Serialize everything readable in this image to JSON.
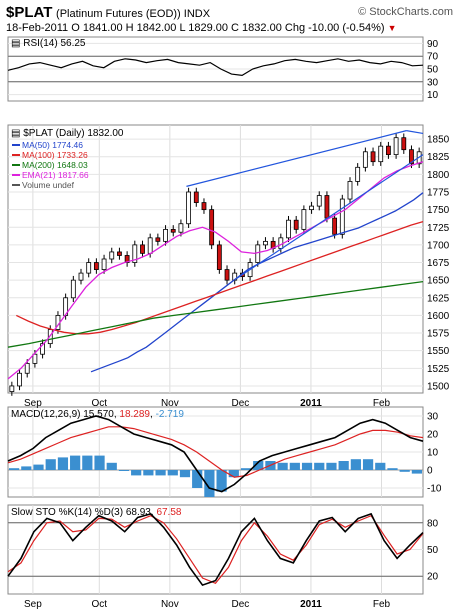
{
  "header": {
    "symbol": "$PLAT",
    "description": "(Platinum Futures (EOD)) INDX",
    "site": "© StockCharts.com",
    "ohlc_line": "18-Feb-2011  O 1841.00  H 1842.00  L 1829.00  C 1832.00  Chg -10.00 (-0.54%)",
    "chg_marker": "▼"
  },
  "chart_data": [
    {
      "type": "line",
      "panel": "RSI",
      "label": "RSI(14) 56.25",
      "ylim": [
        0,
        100
      ],
      "yticks": [
        10,
        30,
        50,
        70,
        90
      ],
      "reference_lines": [
        30,
        70
      ],
      "series": [
        {
          "values": [
            48,
            52,
            58,
            60,
            56,
            52,
            58,
            62,
            55,
            52,
            62,
            66,
            64,
            60,
            63,
            65,
            60,
            58,
            56,
            60,
            50,
            42,
            40,
            50,
            55,
            58,
            63,
            65,
            62,
            60,
            63,
            66,
            62,
            64,
            60,
            58,
            62,
            60,
            55,
            56
          ]
        }
      ]
    },
    {
      "type": "candlestick",
      "panel": "price",
      "title": "$PLAT (Daily) 1832.00",
      "ylim": [
        1490,
        1870
      ],
      "yticks": [
        1500,
        1525,
        1550,
        1575,
        1600,
        1625,
        1650,
        1675,
        1700,
        1725,
        1750,
        1775,
        1800,
        1825,
        1850
      ],
      "x_labels": [
        "Sep",
        "Oct",
        "Nov",
        "Dec",
        "2011",
        "Feb"
      ],
      "legend": [
        {
          "text": "MA(50) 1774.46",
          "color": "#2244cc"
        },
        {
          "text": "MA(100) 1733.26",
          "color": "#dd2222"
        },
        {
          "text": "MA(200) 1648.03",
          "color": "#117711"
        },
        {
          "text": "EMA(21) 1817.66",
          "color": "#dd22dd"
        },
        {
          "text": "Volume undef",
          "color": "#555555"
        }
      ],
      "closes": [
        1500,
        1518,
        1532,
        1545,
        1560,
        1580,
        1600,
        1625,
        1650,
        1660,
        1675,
        1665,
        1680,
        1690,
        1685,
        1675,
        1700,
        1688,
        1710,
        1705,
        1722,
        1718,
        1730,
        1775,
        1760,
        1750,
        1700,
        1665,
        1650,
        1660,
        1655,
        1675,
        1700,
        1705,
        1695,
        1710,
        1735,
        1722,
        1750,
        1755,
        1770,
        1738,
        1715,
        1765,
        1790,
        1810,
        1832,
        1818,
        1840,
        1828,
        1852,
        1835,
        1815,
        1832
      ],
      "series": [
        {
          "name": "MA(50)",
          "color": "#2244cc",
          "values": [
            1520,
            1525,
            1530,
            1535,
            1540,
            1548,
            1555,
            1565,
            1575,
            1585,
            1595,
            1605,
            1615,
            1625,
            1635,
            1645,
            1655,
            1665,
            1672,
            1678,
            1684,
            1690,
            1696,
            1700,
            1704,
            1708,
            1712,
            1716,
            1720,
            1724,
            1730,
            1736,
            1742,
            1748,
            1756,
            1764,
            1774
          ]
        },
        {
          "name": "MA(100)",
          "color": "#dd2222",
          "values": [
            1600,
            1592,
            1585,
            1580,
            1576,
            1574,
            1574,
            1576,
            1580,
            1585,
            1590,
            1596,
            1602,
            1608,
            1614,
            1620,
            1626,
            1632,
            1638,
            1644,
            1650,
            1656,
            1662,
            1668,
            1674,
            1680,
            1686,
            1692,
            1698,
            1704,
            1710,
            1716,
            1722,
            1728,
            1733
          ]
        },
        {
          "name": "MA(200)",
          "color": "#117711",
          "values": [
            1555,
            1560,
            1566,
            1572,
            1578,
            1584,
            1590,
            1596,
            1600,
            1604,
            1608,
            1612,
            1616,
            1620,
            1624,
            1628,
            1632,
            1636,
            1640,
            1644,
            1648
          ]
        },
        {
          "name": "EMA(21)",
          "color": "#dd22dd",
          "values": [
            1510,
            1525,
            1545,
            1565,
            1590,
            1615,
            1640,
            1658,
            1668,
            1675,
            1680,
            1688,
            1700,
            1712,
            1720,
            1725,
            1718,
            1705,
            1690,
            1688,
            1692,
            1700,
            1710,
            1720,
            1730,
            1740,
            1750,
            1765,
            1780,
            1795,
            1805,
            1812,
            1818
          ]
        }
      ]
    },
    {
      "type": "line",
      "panel": "MACD",
      "label": "MACD(12,26,9) 15.570, 18.289, -2.719",
      "label_parts": [
        "MACD(12,26,9) ",
        "15.570",
        ", ",
        "18.289",
        ", ",
        "-2.719"
      ],
      "ylim": [
        -15,
        35
      ],
      "yticks": [
        -10,
        0,
        10,
        20,
        30
      ],
      "series": [
        {
          "name": "MACD",
          "color": "#000000",
          "values": [
            5,
            8,
            12,
            18,
            22,
            26,
            28,
            30,
            28,
            24,
            20,
            18,
            16,
            14,
            10,
            0,
            -10,
            -12,
            -8,
            -2,
            5,
            8,
            10,
            12,
            14,
            16,
            18,
            22,
            26,
            28,
            26,
            22,
            18,
            16
          ]
        },
        {
          "name": "Signal",
          "color": "#dd2222",
          "values": [
            4,
            6,
            9,
            12,
            15,
            18,
            20,
            22,
            24,
            24,
            23,
            21,
            19,
            17,
            14,
            10,
            5,
            0,
            -4,
            -3,
            0,
            3,
            6,
            8,
            10,
            12,
            14,
            17,
            20,
            22,
            22,
            21,
            19,
            18
          ]
        },
        {
          "name": "Histogram",
          "color": "#3b8fd0",
          "values": [
            1,
            2,
            3,
            6,
            7,
            8,
            8,
            8,
            4,
            0,
            -3,
            -3,
            -3,
            -3,
            -4,
            -10,
            -15,
            -12,
            -4,
            1,
            5,
            5,
            4,
            4,
            4,
            4,
            4,
            5,
            6,
            6,
            4,
            1,
            -1,
            -2
          ]
        }
      ]
    },
    {
      "type": "line",
      "panel": "STO",
      "label": "Slow STO %K(14) %D(3) 68.93, 67.58",
      "label_parts": [
        "Slow STO %K(14) %D(3) ",
        "68.93",
        ", ",
        "67.58"
      ],
      "ylim": [
        0,
        100
      ],
      "yticks": [
        20,
        50,
        80
      ],
      "reference_lines": [
        20,
        80
      ],
      "series": [
        {
          "name": "%K",
          "color": "#000000",
          "values": [
            20,
            40,
            70,
            85,
            80,
            60,
            75,
            88,
            82,
            70,
            86,
            90,
            75,
            55,
            30,
            10,
            15,
            40,
            70,
            85,
            60,
            40,
            35,
            60,
            82,
            86,
            70,
            85,
            90,
            60,
            40,
            55,
            69
          ]
        },
        {
          "name": "%D",
          "color": "#dd2222",
          "values": [
            25,
            35,
            60,
            80,
            82,
            70,
            72,
            85,
            84,
            75,
            82,
            88,
            80,
            62,
            40,
            18,
            12,
            30,
            60,
            80,
            65,
            45,
            38,
            55,
            78,
            84,
            75,
            82,
            88,
            66,
            45,
            50,
            68
          ]
        }
      ]
    }
  ]
}
